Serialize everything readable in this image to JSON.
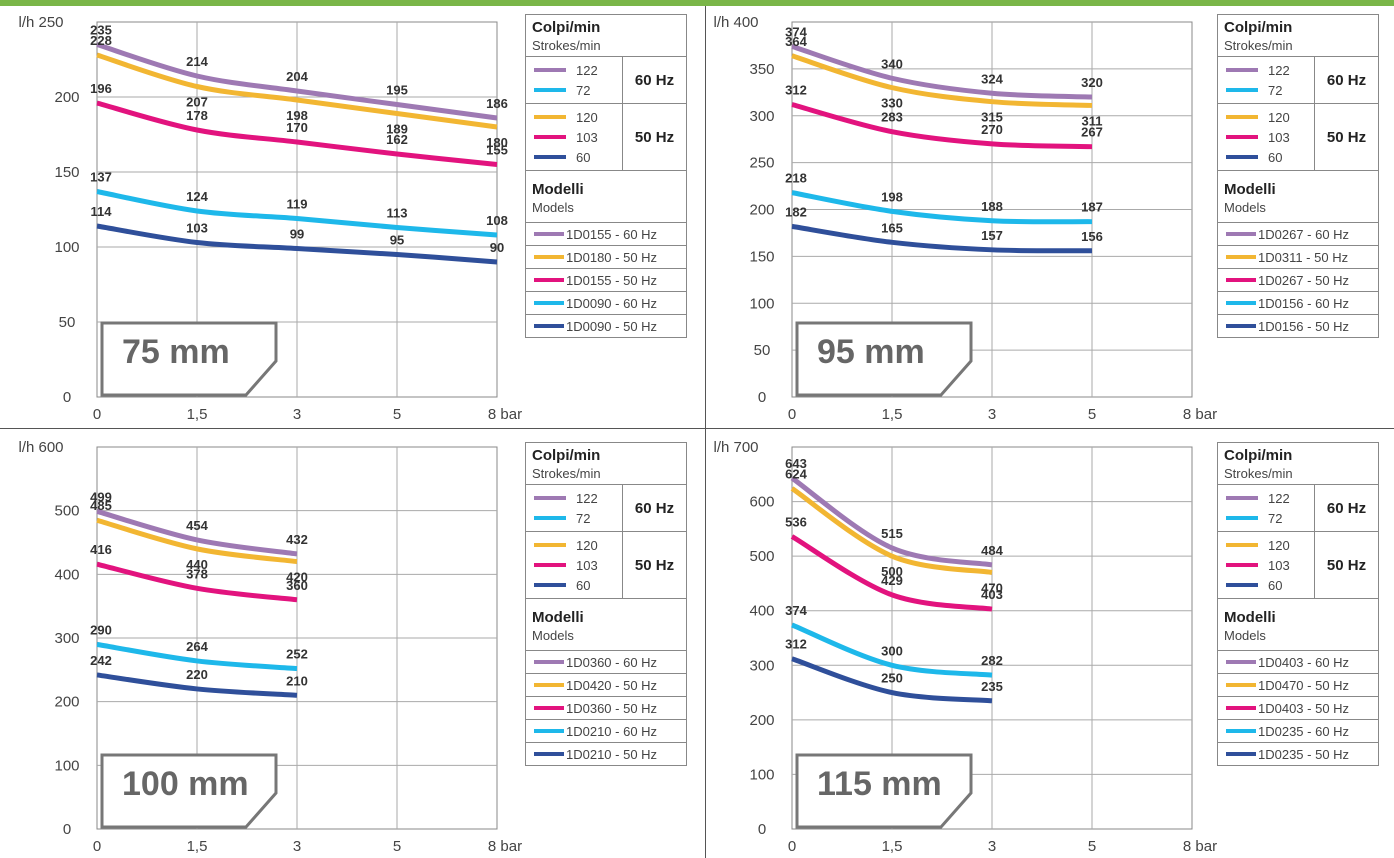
{
  "legend": {
    "strokes_title": "Colpi/min",
    "strokes_subtitle": "Strokes/min",
    "models_title": "Modelli",
    "models_subtitle": "Models",
    "groups": [
      {
        "label": "60 Hz",
        "rows": [
          {
            "value": "122",
            "color": "#9e79b3"
          },
          {
            "value": "72",
            "color": "#1eb8ea"
          }
        ]
      },
      {
        "label": "50 Hz",
        "rows": [
          {
            "value": "120",
            "color": "#f2b632"
          },
          {
            "value": "103",
            "color": "#e2137e"
          },
          {
            "value": "60",
            "color": "#2f4f9a"
          }
        ]
      }
    ]
  },
  "chart_data": [
    {
      "type": "line",
      "size_label": "75 mm",
      "ylabel": "l/h",
      "x_ticks": [
        "0",
        "1,5",
        "3",
        "5",
        "8 bar"
      ],
      "y_ticks": [
        0,
        50,
        100,
        150,
        200,
        250
      ],
      "ylim": [
        0,
        250
      ],
      "models": [
        "1D0155 - 60 Hz",
        "1D0180 - 50 Hz",
        "1D0155 - 50 Hz",
        "1D0090 - 60 Hz",
        "1D0090 - 50 Hz"
      ],
      "series": [
        {
          "color": "#9e79b3",
          "values": [
            235,
            214,
            204,
            195,
            186
          ]
        },
        {
          "color": "#f2b632",
          "values": [
            228,
            207,
            198,
            189,
            180
          ]
        },
        {
          "color": "#e2137e",
          "values": [
            196,
            178,
            170,
            162,
            155
          ]
        },
        {
          "color": "#1eb8ea",
          "values": [
            137,
            124,
            119,
            113,
            108
          ]
        },
        {
          "color": "#2f4f9a",
          "values": [
            114,
            103,
            99,
            95,
            90
          ]
        }
      ]
    },
    {
      "type": "line",
      "size_label": "95 mm",
      "ylabel": "l/h",
      "x_ticks": [
        "0",
        "1,5",
        "3",
        "5",
        "8 bar"
      ],
      "y_ticks": [
        0,
        50,
        100,
        150,
        200,
        250,
        300,
        350,
        400
      ],
      "ylim": [
        0,
        400
      ],
      "models": [
        "1D0267 - 60 Hz",
        "1D0311 - 50 Hz",
        "1D0267 - 50 Hz",
        "1D0156 - 60 Hz",
        "1D0156 - 50 Hz"
      ],
      "series": [
        {
          "color": "#9e79b3",
          "values": [
            374,
            340,
            324,
            320
          ]
        },
        {
          "color": "#f2b632",
          "values": [
            364,
            330,
            315,
            311
          ]
        },
        {
          "color": "#e2137e",
          "values": [
            312,
            283,
            270,
            267
          ]
        },
        {
          "color": "#1eb8ea",
          "values": [
            218,
            198,
            188,
            187
          ]
        },
        {
          "color": "#2f4f9a",
          "values": [
            182,
            165,
            157,
            156
          ]
        }
      ]
    },
    {
      "type": "line",
      "size_label": "100 mm",
      "ylabel": "l/h",
      "x_ticks": [
        "0",
        "1,5",
        "3",
        "5",
        "8 bar"
      ],
      "y_ticks": [
        0,
        100,
        200,
        300,
        400,
        500,
        600
      ],
      "ylim": [
        0,
        600
      ],
      "models": [
        "1D0360 - 60 Hz",
        "1D0420 - 50 Hz",
        "1D0360 - 50 Hz",
        "1D0210 - 60 Hz",
        "1D0210 - 50 Hz"
      ],
      "series": [
        {
          "color": "#9e79b3",
          "values": [
            499,
            454,
            432
          ]
        },
        {
          "color": "#f2b632",
          "values": [
            485,
            440,
            420
          ]
        },
        {
          "color": "#e2137e",
          "values": [
            416,
            378,
            360
          ]
        },
        {
          "color": "#1eb8ea",
          "values": [
            290,
            264,
            252
          ]
        },
        {
          "color": "#2f4f9a",
          "values": [
            242,
            220,
            210
          ]
        }
      ]
    },
    {
      "type": "line",
      "size_label": "115 mm",
      "ylabel": "l/h",
      "x_ticks": [
        "0",
        "1,5",
        "3",
        "5",
        "8 bar"
      ],
      "y_ticks": [
        0,
        100,
        200,
        300,
        400,
        500,
        600,
        700
      ],
      "ylim": [
        0,
        700
      ],
      "models": [
        "1D0403 - 60 Hz",
        "1D0470 - 50 Hz",
        "1D0403 - 50 Hz",
        "1D0235 - 60 Hz",
        "1D0235 - 50 Hz"
      ],
      "series": [
        {
          "color": "#9e79b3",
          "values": [
            643,
            515,
            484
          ]
        },
        {
          "color": "#f2b632",
          "values": [
            624,
            500,
            470
          ]
        },
        {
          "color": "#e2137e",
          "values": [
            536,
            429,
            403
          ]
        },
        {
          "color": "#1eb8ea",
          "values": [
            374,
            300,
            282
          ]
        },
        {
          "color": "#2f4f9a",
          "values": [
            312,
            250,
            235
          ]
        }
      ]
    }
  ]
}
